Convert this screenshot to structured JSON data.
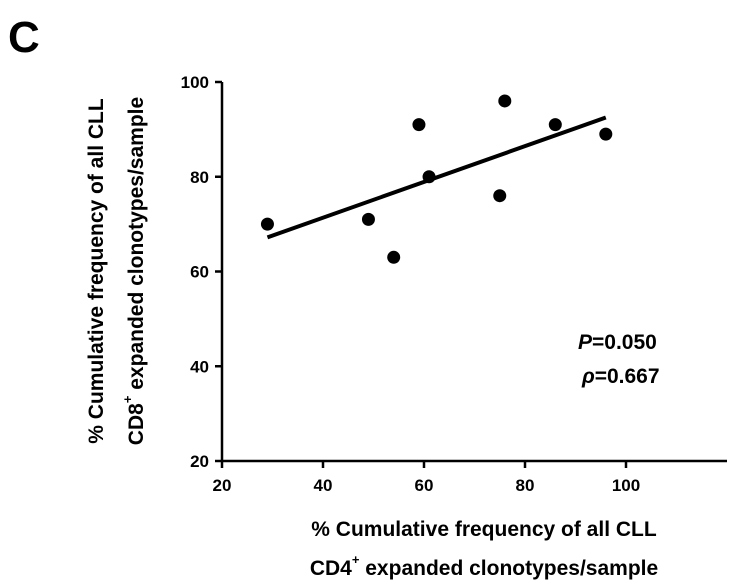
{
  "panel_label": "C",
  "chart_data": {
    "type": "scatter",
    "x": [
      29,
      49,
      54,
      59,
      61,
      75,
      76,
      86,
      96
    ],
    "y": [
      70,
      71,
      63,
      91,
      80,
      76,
      96,
      91,
      89
    ],
    "xlim": [
      20,
      100
    ],
    "ylim": [
      20,
      100
    ],
    "xticks": [
      "20",
      "40",
      "60",
      "80",
      "100"
    ],
    "yticks": [
      "20",
      "40",
      "60",
      "80",
      "100"
    ],
    "xlabel_line1": "% Cumulative frequency of all CLL",
    "xlabel_line2_pre": "CD4",
    "xlabel_line2_sup": "+",
    "xlabel_line2_post": " expanded clonotypes/sample",
    "ylabel_line1": "% Cumulative frequency of all CLL",
    "ylabel_line2_pre": "CD8",
    "ylabel_line2_sup": "+",
    "ylabel_line2_post": " expanded clonotypes/sample",
    "trendline": {
      "x": [
        29,
        96
      ],
      "y": [
        67.2,
        92.5
      ]
    },
    "annotation": {
      "p_symbol": "P",
      "p_value": "=0.050",
      "rho_symbol": "ρ",
      "rho_value": "=0.667"
    },
    "grid": false,
    "legend": "none"
  }
}
